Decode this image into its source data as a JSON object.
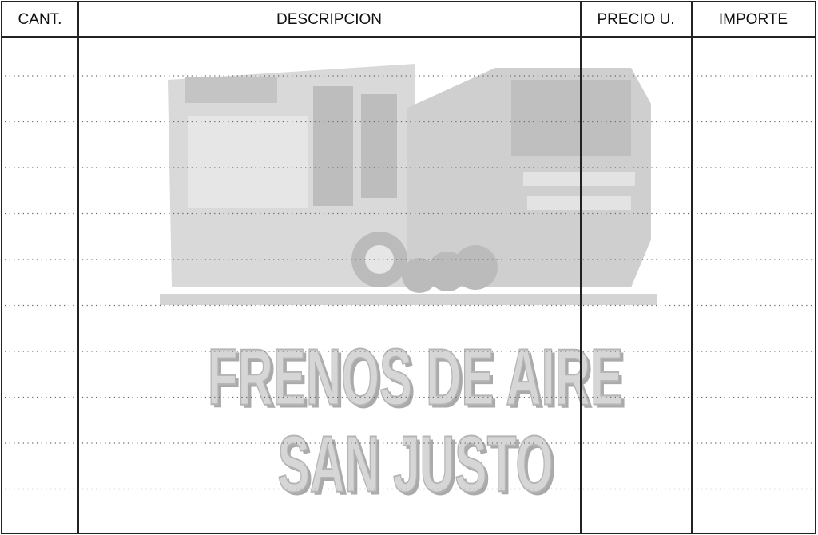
{
  "table": {
    "columns": [
      "CANT.",
      "DESCRIPCION",
      "PRECIO U.",
      "IMPORTE"
    ]
  },
  "watermark": {
    "lines": [
      "FRENOS DE AIRE",
      "SAN JUSTO"
    ]
  }
}
